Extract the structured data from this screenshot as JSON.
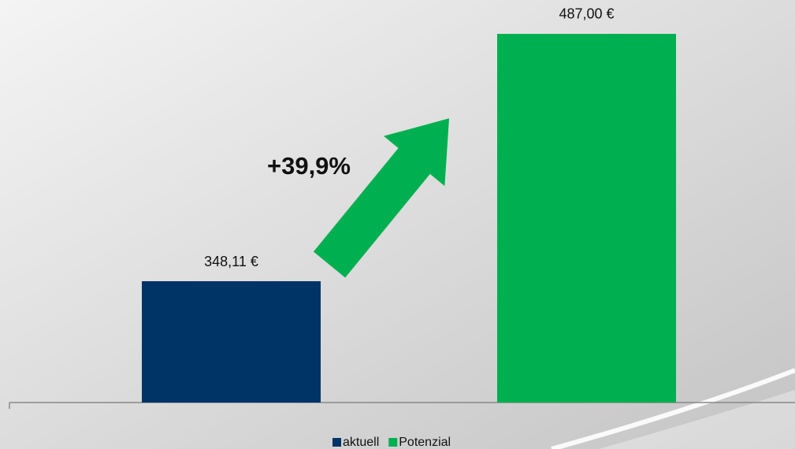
{
  "chart_data": {
    "type": "bar",
    "annotation": "+39,9%",
    "categories": [
      null
    ],
    "series": [
      {
        "name": "aktuell",
        "color": "#003366",
        "values": [
          348.11
        ],
        "value_labels": [
          "348,11 €"
        ]
      },
      {
        "name": "Potenzial",
        "color": "#00b050",
        "values": [
          487.0
        ],
        "value_labels": [
          "487,00 €"
        ]
      }
    ],
    "ylim": [
      280,
      500
    ],
    "arrow_color": "#00b050"
  }
}
